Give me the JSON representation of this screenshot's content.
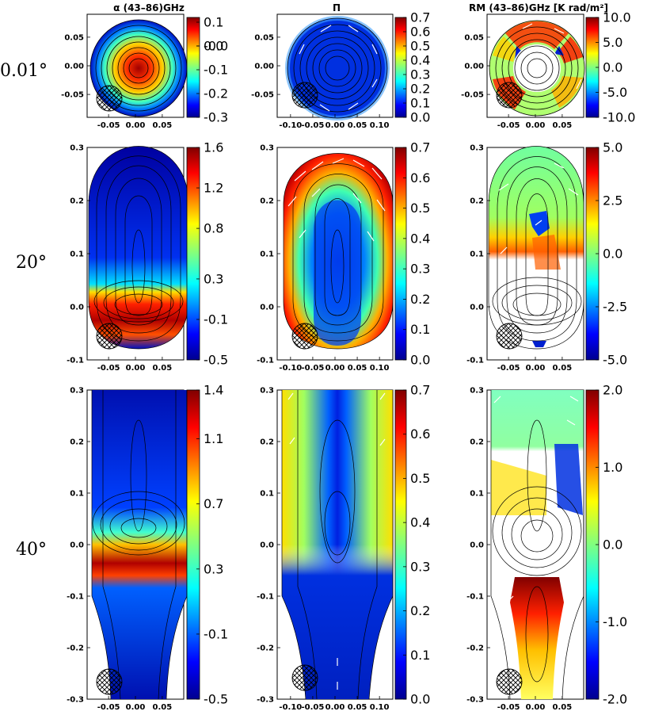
{
  "column_titles": [
    "α (43–86)GHz",
    "Π",
    "RM (43–86)GHz [K rad/m²]"
  ],
  "row_labels": [
    "0.01°",
    "20°",
    "40°"
  ],
  "chart_data": [
    {
      "type": "heatmap",
      "row": 0,
      "col": 0,
      "quantity": "α",
      "xlim": [
        -0.09,
        0.09
      ],
      "ylim": [
        -0.09,
        0.09
      ],
      "xticks": [
        "-0.05",
        "0.00",
        "0.05"
      ],
      "yticks": [
        "0.05",
        "0.00",
        "-0.05"
      ],
      "colorbar": {
        "min": -0.3,
        "max": 0.12,
        "ticks": [
          "0.1",
          "0.0",
          "-0.0",
          "-0.1",
          "-0.2",
          "-0.3"
        ]
      }
    },
    {
      "type": "heatmap",
      "row": 0,
      "col": 1,
      "quantity": "Π",
      "xlim": [
        -0.13,
        0.13
      ],
      "ylim": [
        -0.09,
        0.09
      ],
      "xticks": [
        "-0.10",
        "-0.05",
        "0.00",
        "0.05",
        "0.10"
      ],
      "yticks": [
        "0.05",
        "0.00",
        "-0.05"
      ],
      "colorbar": {
        "min": 0.0,
        "max": 0.7,
        "ticks": [
          "0.7",
          "0.6",
          "0.5",
          "0.4",
          "0.3",
          "0.2",
          "0.1",
          "0.0"
        ]
      }
    },
    {
      "type": "heatmap",
      "row": 0,
      "col": 2,
      "quantity": "RM",
      "xlim": [
        -0.09,
        0.09
      ],
      "ylim": [
        -0.09,
        0.09
      ],
      "xticks": [
        "-0.05",
        "0.00",
        "0.05"
      ],
      "yticks": [
        "0.05",
        "0.00",
        "-0.05"
      ],
      "colorbar": {
        "min": -10.0,
        "max": 10.0,
        "ticks": [
          "10.0",
          "5.0",
          "0.0",
          "-5.0",
          "-10.0"
        ]
      }
    },
    {
      "type": "heatmap",
      "row": 1,
      "col": 0,
      "quantity": "α",
      "xlim": [
        -0.09,
        0.09
      ],
      "ylim": [
        -0.1,
        0.3
      ],
      "xticks": [
        "-0.05",
        "0.00",
        "0.05"
      ],
      "yticks": [
        "0.3",
        "0.2",
        "0.1",
        "0.0",
        "-0.1"
      ],
      "colorbar": {
        "min": -0.5,
        "max": 1.6,
        "ticks": [
          "1.6",
          "1.2",
          "0.8",
          "0.3",
          "-0.1",
          "-0.5"
        ]
      }
    },
    {
      "type": "heatmap",
      "row": 1,
      "col": 1,
      "quantity": "Π",
      "xlim": [
        -0.13,
        0.13
      ],
      "ylim": [
        -0.1,
        0.3
      ],
      "xticks": [
        "-0.10",
        "-0.05",
        "0.00",
        "0.05",
        "0.10"
      ],
      "yticks": [
        "0.3",
        "0.2",
        "0.1",
        "0.0",
        "-0.1"
      ],
      "colorbar": {
        "min": 0.0,
        "max": 0.7,
        "ticks": [
          "0.7",
          "0.6",
          "0.5",
          "0.4",
          "0.3",
          "0.2",
          "0.1",
          "0.0"
        ]
      }
    },
    {
      "type": "heatmap",
      "row": 1,
      "col": 2,
      "quantity": "RM",
      "xlim": [
        -0.09,
        0.09
      ],
      "ylim": [
        -0.1,
        0.3
      ],
      "xticks": [
        "-0.05",
        "0.00",
        "0.05"
      ],
      "yticks": [
        "0.3",
        "0.2",
        "0.1",
        "0.0",
        "-0.1"
      ],
      "colorbar": {
        "min": -5.0,
        "max": 5.0,
        "ticks": [
          "5.0",
          "2.5",
          "0.0",
          "-2.5",
          "-5.0"
        ]
      }
    },
    {
      "type": "heatmap",
      "row": 2,
      "col": 0,
      "quantity": "α",
      "xlim": [
        -0.09,
        0.09
      ],
      "ylim": [
        -0.3,
        0.3
      ],
      "xticks": [
        "-0.05",
        "0.00",
        "0.05"
      ],
      "yticks": [
        "0.3",
        "0.2",
        "0.1",
        "0.0",
        "-0.1",
        "-0.2",
        "-0.3"
      ],
      "colorbar": {
        "min": -0.5,
        "max": 1.4,
        "ticks": [
          "1.4",
          "1.1",
          "0.7",
          "0.3",
          "-0.1",
          "-0.5"
        ]
      }
    },
    {
      "type": "heatmap",
      "row": 2,
      "col": 1,
      "quantity": "Π",
      "xlim": [
        -0.13,
        0.13
      ],
      "ylim": [
        -0.3,
        0.3
      ],
      "xticks": [
        "-0.10",
        "-0.05",
        "0.00",
        "0.05",
        "0.10"
      ],
      "yticks": [
        "0.3",
        "0.2",
        "0.1",
        "0.0",
        "-0.1",
        "-0.2",
        "-0.3"
      ],
      "colorbar": {
        "min": 0.0,
        "max": 0.7,
        "ticks": [
          "0.7",
          "0.6",
          "0.5",
          "0.4",
          "0.3",
          "0.2",
          "0.1",
          "0.0"
        ]
      }
    },
    {
      "type": "heatmap",
      "row": 2,
      "col": 2,
      "quantity": "RM",
      "xlim": [
        -0.09,
        0.09
      ],
      "ylim": [
        -0.3,
        0.3
      ],
      "xticks": [
        "-0.05",
        "0.00",
        "0.05"
      ],
      "yticks": [
        "0.3",
        "0.2",
        "0.1",
        "0.0",
        "-0.1",
        "-0.2",
        "-0.3"
      ],
      "colorbar": {
        "min": -2.0,
        "max": 2.0,
        "ticks": [
          "2.0",
          "1.0",
          "0.0",
          "-1.0",
          "-2.0"
        ]
      }
    }
  ]
}
